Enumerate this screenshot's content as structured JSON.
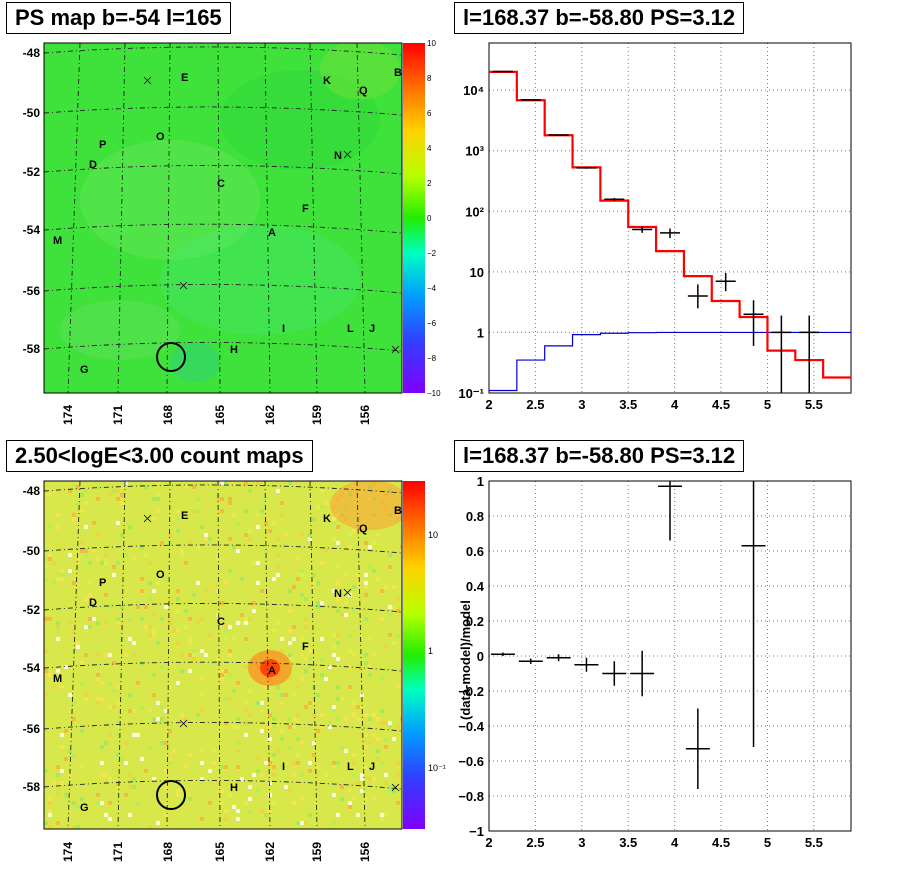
{
  "panels": {
    "ps_map": {
      "title": "PS map b=-54 l=165",
      "y_ticks": [
        "-48",
        "-50",
        "-52",
        "-54",
        "-56",
        "-58"
      ],
      "x_ticks": [
        "174",
        "171",
        "168",
        "165",
        "162",
        "159",
        "156"
      ],
      "colorbar_ticks": [
        "10",
        "8",
        "6",
        "4",
        "2",
        "0",
        "−2",
        "−4",
        "−6",
        "−8",
        "−10"
      ]
    },
    "count_map": {
      "title": "2.50<logE<3.00 count maps",
      "y_ticks": [
        "-48",
        "-50",
        "-52",
        "-54",
        "-56",
        "-58"
      ],
      "x_ticks": [
        "174",
        "171",
        "168",
        "165",
        "162",
        "159",
        "156"
      ],
      "colorbar_ticks": [
        "10",
        "1",
        "10⁻¹"
      ]
    },
    "spectrum": {
      "title": "l=168.37 b=-58.80 PS=3.12"
    },
    "residuals": {
      "title": "l=168.37 b=-58.80 PS=3.12",
      "ylabel": "(data-model)/model"
    }
  },
  "sources": [
    {
      "label": "E"
    },
    {
      "label": "K"
    },
    {
      "label": "Q"
    },
    {
      "label": "B"
    },
    {
      "label": "O"
    },
    {
      "label": "P"
    },
    {
      "label": "D"
    },
    {
      "label": "N"
    },
    {
      "label": "C"
    },
    {
      "label": "F"
    },
    {
      "label": "A"
    },
    {
      "label": "M"
    },
    {
      "label": "I"
    },
    {
      "label": "L"
    },
    {
      "label": "J"
    },
    {
      "label": "H"
    },
    {
      "label": "G"
    }
  ],
  "colors": {
    "ps_map_background": "#3ee23a",
    "model_histogram": "#ff0000",
    "background_model": "#0000cc",
    "data_points": "#000000"
  },
  "chart_data": [
    {
      "type": "heatmap",
      "title": "PS map b=-54 l=165",
      "xlabel": "",
      "ylabel": "",
      "x_ticks": [
        174,
        171,
        168,
        165,
        162,
        159,
        156
      ],
      "y_ticks": [
        -48,
        -50,
        -52,
        -54,
        -56,
        -58
      ],
      "colorbar_range": [
        -10,
        10
      ],
      "colorbar_ticks": [
        10,
        8,
        6,
        4,
        2,
        0,
        -2,
        -4,
        -6,
        -8,
        -10
      ],
      "circle": {
        "l": 168.37,
        "b": -58.8
      },
      "grid": true
    },
    {
      "type": "heatmap",
      "title": "2.50<logE<3.00 count maps",
      "xlabel": "",
      "ylabel": "",
      "x_ticks": [
        174,
        171,
        168,
        165,
        162,
        159,
        156
      ],
      "y_ticks": [
        -48,
        -50,
        -52,
        -54,
        -56,
        -58
      ],
      "colorbar_scale": "log",
      "colorbar_ticks": [
        10,
        1,
        0.1
      ],
      "circle": {
        "l": 168.37,
        "b": -58.8
      },
      "grid": true
    },
    {
      "type": "line",
      "title": "l=168.37 b=-58.80 PS=3.12",
      "xlabel": "",
      "ylabel": "",
      "xlim": [
        2,
        5.9
      ],
      "ylim": [
        0.1,
        60000
      ],
      "yscale": "log",
      "x_ticks": [
        2,
        2.5,
        3,
        3.5,
        4,
        4.5,
        5,
        5.5
      ],
      "y_tick_labels": [
        "10⁻¹",
        "1",
        "10",
        "10²",
        "10³",
        "10⁴"
      ],
      "grid": true,
      "series": [
        {
          "style": "red-step",
          "bin_edges": [
            2.0,
            2.3,
            2.6,
            2.9,
            3.2,
            3.5,
            3.8,
            4.1,
            4.4,
            4.7,
            5.0,
            5.3,
            5.6,
            5.9
          ],
          "values": [
            20000,
            6800,
            1800,
            530,
            150,
            55,
            22,
            8.5,
            3.3,
            1.8,
            0.5,
            0.35,
            0.18
          ]
        },
        {
          "style": "blue-step",
          "bin_edges": [
            2.0,
            2.3,
            2.6,
            2.9,
            3.2,
            3.5,
            3.8,
            4.1,
            4.4,
            4.7,
            5.0,
            5.3,
            5.6,
            5.9
          ],
          "values": [
            0.11,
            0.35,
            0.6,
            0.92,
            0.97,
            0.99,
            1.0,
            1.0,
            1.0,
            1.0,
            1.0,
            1.0,
            1.0
          ]
        },
        {
          "style": "black-points",
          "x": [
            2.15,
            2.45,
            2.75,
            3.05,
            3.35,
            3.65,
            3.95,
            4.25,
            4.55,
            4.85,
            5.15,
            5.45
          ],
          "y": [
            20300,
            6900,
            1820,
            520,
            158,
            50,
            44,
            4.0,
            7.0,
            2.0,
            1.0,
            1.0
          ],
          "y_low": [
            20100,
            6800,
            1790,
            505,
            150,
            44,
            36,
            2.5,
            4.8,
            0.6,
            0.1,
            0.1
          ],
          "y_high": [
            20500,
            7000,
            1850,
            535,
            166,
            56,
            52,
            6.2,
            9.6,
            3.4,
            1.9,
            1.9
          ]
        }
      ]
    },
    {
      "type": "scatter",
      "title": "l=168.37 b=-58.80 PS=3.12",
      "xlabel": "",
      "ylabel": "(data-model)/model",
      "xlim": [
        2,
        5.9
      ],
      "ylim": [
        -1,
        1
      ],
      "x_ticks": [
        2,
        2.5,
        3,
        3.5,
        4,
        4.5,
        5,
        5.5
      ],
      "y_ticks": [
        1,
        0.8,
        0.6,
        0.4,
        0.2,
        0,
        -0.2,
        -0.4,
        -0.6,
        -0.8,
        -1
      ],
      "grid": true,
      "x": [
        2.15,
        2.45,
        2.75,
        3.05,
        3.35,
        3.65,
        3.95,
        4.25,
        4.85
      ],
      "y": [
        0.01,
        -0.03,
        -0.01,
        -0.05,
        -0.1,
        -0.1,
        0.97,
        -0.53,
        0.63
      ],
      "y_low": [
        0.0,
        -0.045,
        -0.03,
        -0.09,
        -0.17,
        -0.23,
        0.66,
        -0.76,
        -0.52
      ],
      "y_high": [
        0.02,
        -0.015,
        0.01,
        -0.01,
        -0.03,
        0.03,
        1.0,
        -0.3,
        1.0
      ]
    }
  ]
}
